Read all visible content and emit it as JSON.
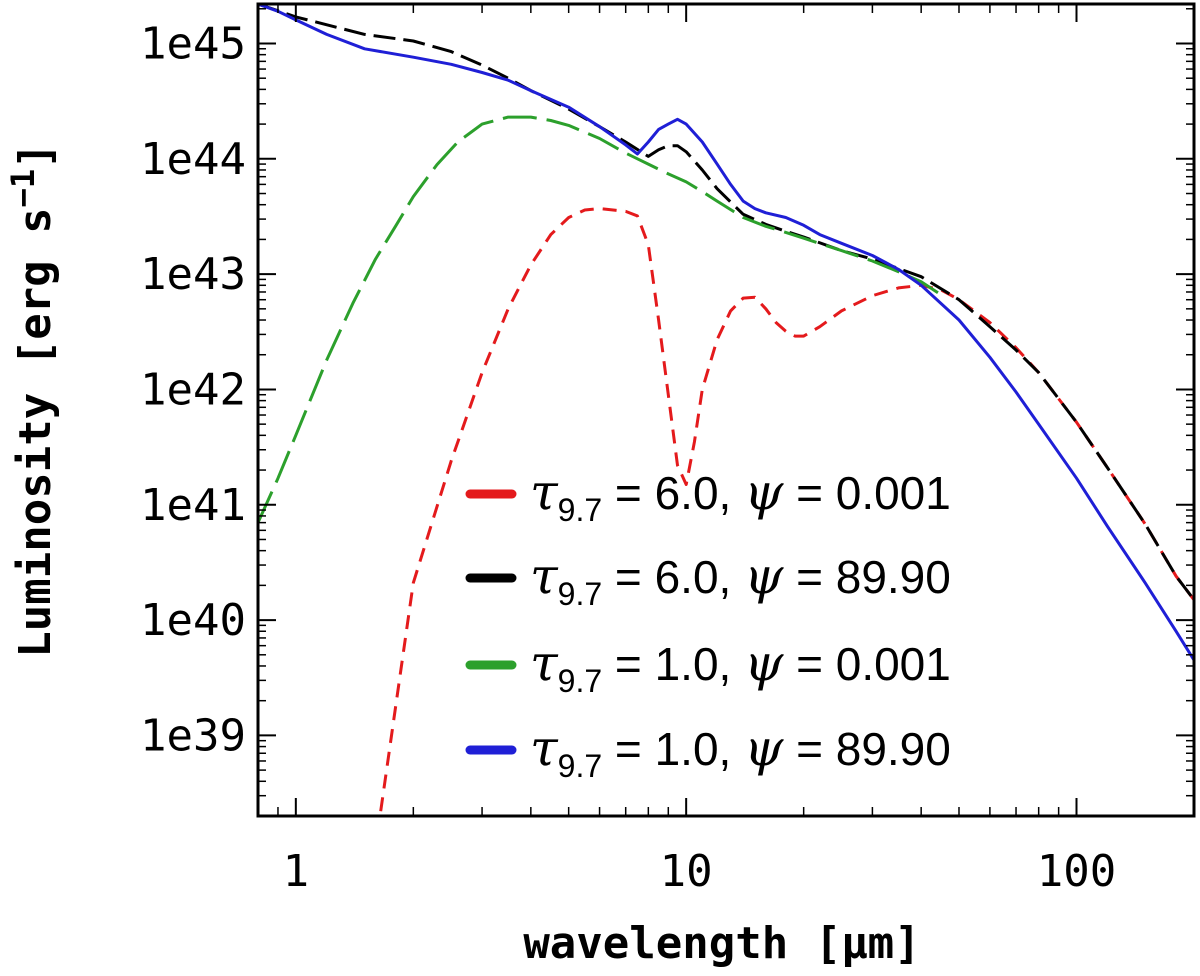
{
  "chart_data": {
    "type": "line",
    "xlabel": "wavelength [μm]",
    "ylabel": "Luminosity [erg s",
    "ylabel_sup": "−1",
    "ylabel_close": "]",
    "x_scale": "log",
    "y_scale": "log",
    "xlim": [
      0.8,
      200
    ],
    "ylim": [
      2e+38,
      2.2e+45
    ],
    "x_ticks": [
      {
        "value": 1,
        "label": "1"
      },
      {
        "value": 10,
        "label": "10"
      },
      {
        "value": 100,
        "label": "100"
      }
    ],
    "y_ticks": [
      {
        "value": 1e+39,
        "label": "1e39"
      },
      {
        "value": 1e+40,
        "label": "1e40"
      },
      {
        "value": 1e+41,
        "label": "1e41"
      },
      {
        "value": 1e+42,
        "label": "1e42"
      },
      {
        "value": 1e+43,
        "label": "1e43"
      },
      {
        "value": 1e+44,
        "label": "1e44"
      },
      {
        "value": 1e+45,
        "label": "1e45"
      }
    ],
    "grid": false,
    "legend_position": "bottom-right",
    "series": [
      {
        "name": "τ9.7 = 6.0, ψ = 0.001",
        "legend": {
          "tau": "τ",
          "sub": "9.7",
          "mid": " = 6.0, ",
          "psi": "ψ",
          "rest": " = 0.001"
        },
        "color": "#e41a1c",
        "dash": "14,9",
        "x": [
          1.65,
          2.0,
          2.5,
          3.0,
          3.5,
          4.0,
          4.5,
          5.0,
          5.5,
          6.0,
          6.5,
          7.0,
          7.5,
          8.0,
          8.5,
          9.0,
          9.5,
          10.0,
          10.5,
          11.0,
          12.0,
          13.0,
          14.0,
          15.0,
          16.0,
          17.0,
          18.0,
          19.0,
          20.0,
          22.0,
          25.0,
          30.0,
          35.0,
          40.0,
          45.0,
          50.0,
          60.0,
          70.0,
          80.0,
          100.0,
          120.0,
          150.0,
          180.0,
          200.0
        ],
        "y": [
          2.2e+38,
          2.1e+40,
          2.4e+41,
          1.4e+42,
          5e+42,
          1.2e+43,
          2.2e+43,
          3.1e+43,
          3.6e+43,
          3.7e+43,
          3.6e+43,
          3.5e+43,
          3.2e+43,
          1.8e+43,
          4e+42,
          9e+41,
          2.2e+41,
          1.5e+41,
          3.5e+41,
          1e+42,
          2.7e+42,
          4.8e+42,
          6.2e+42,
          6.3e+42,
          5e+42,
          3.8e+42,
          3.2e+42,
          2.9e+42,
          2.9e+42,
          3.5e+42,
          4.8e+42,
          6.5e+42,
          7.6e+42,
          8e+42,
          7.3e+42,
          6e+42,
          3.8e+42,
          2.3e+42,
          1.4e+42,
          5.2e+41,
          2.1e+41,
          6.8e+40,
          2.4e+40,
          1.5e+40
        ]
      },
      {
        "name": "τ9.7 = 6.0, ψ = 89.90",
        "legend": {
          "tau": "τ",
          "sub": "9.7",
          "mid": " = 6.0, ",
          "psi": "ψ",
          "rest": " = 89.90"
        },
        "color": "#000000",
        "dash": "22,8",
        "x": [
          0.8,
          1.0,
          1.5,
          2.0,
          2.5,
          3.0,
          3.5,
          4.0,
          5.0,
          6.0,
          7.0,
          8.0,
          8.5,
          9.0,
          9.5,
          10.0,
          11.0,
          12.0,
          14.0,
          16.0,
          18.0,
          20.0,
          25.0,
          30.0,
          40.0,
          50.0,
          60.0,
          70.0,
          80.0,
          100.0,
          120.0,
          150.0,
          180.0,
          200.0
        ],
        "y": [
          2.2e+45,
          1.7e+45,
          1.2e+45,
          1.05e+45,
          8.5e+44,
          6.5e+44,
          5e+44,
          3.9e+44,
          2.7e+44,
          1.9e+44,
          1.4e+44,
          1.05e+44,
          1.2e+44,
          1.3e+44,
          1.3e+44,
          1.15e+44,
          8e+43,
          5.5e+43,
          3.3e+43,
          2.7e+43,
          2.35e+43,
          2.1e+43,
          1.6e+43,
          1.35e+43,
          9.5e+42,
          6e+42,
          3.5e+42,
          2.2e+42,
          1.4e+42,
          5.2e+41,
          2.1e+41,
          6.8e+40,
          2.4e+40,
          1.5e+40
        ]
      },
      {
        "name": "τ9.7 = 1.0, ψ = 0.001",
        "legend": {
          "tau": "τ",
          "sub": "9.7",
          "mid": " = 1.0, ",
          "psi": "ψ",
          "rest": " = 0.001"
        },
        "color": "#2ca02c",
        "dash": "34,10",
        "x": [
          0.8,
          0.9,
          1.0,
          1.2,
          1.4,
          1.6,
          1.8,
          2.0,
          2.3,
          2.6,
          3.0,
          3.5,
          4.0,
          4.5,
          5.0,
          6.0,
          7.0,
          7.5,
          8.0,
          9.0,
          10.0,
          11.0,
          12.0,
          14.0,
          16.0,
          18.0,
          20.0,
          25.0,
          30.0,
          35.0,
          40.0,
          45.0
        ],
        "y": [
          7e+40,
          1.7e+41,
          4e+41,
          1.8e+42,
          5.6e+42,
          1.35e+43,
          2.6e+43,
          4.7e+43,
          8.9e+43,
          1.4e+44,
          2e+44,
          2.3e+44,
          2.3e+44,
          2.15e+44,
          1.95e+44,
          1.5e+44,
          1.12e+44,
          1e+44,
          9e+43,
          7.4e+43,
          6.3e+43,
          5.2e+43,
          4.3e+43,
          3.1e+43,
          2.6e+43,
          2.3e+43,
          2.05e+43,
          1.6e+43,
          1.3e+43,
          1.05e+43,
          8.6e+42,
          6.6e+42
        ]
      },
      {
        "name": "τ9.7 = 1.0, ψ = 89.90",
        "legend": {
          "tau": "τ",
          "sub": "9.7",
          "mid": " = 1.0, ",
          "psi": "ψ",
          "rest": " = 89.90"
        },
        "color": "#1f1fd6",
        "dash": "",
        "x": [
          0.8,
          0.9,
          1.0,
          1.2,
          1.5,
          2.0,
          2.5,
          3.0,
          3.5,
          4.0,
          5.0,
          6.0,
          7.0,
          7.5,
          8.0,
          8.5,
          9.0,
          9.5,
          10.0,
          11.0,
          12.0,
          13.0,
          14.0,
          15.0,
          16.0,
          18.0,
          20.0,
          22.0,
          25.0,
          30.0,
          35.0,
          40.0,
          50.0,
          60.0,
          70.0,
          80.0,
          100.0,
          120.0,
          150.0,
          180.0,
          200.0
        ],
        "y": [
          2.2e+45,
          1.9e+45,
          1.6e+45,
          1.2e+45,
          9e+44,
          7.6e+44,
          6.6e+44,
          5.6e+44,
          4.8e+44,
          3.9e+44,
          2.8e+44,
          1.9e+44,
          1.32e+44,
          1.1e+44,
          1.4e+44,
          1.8e+44,
          2e+44,
          2.2e+44,
          2e+44,
          1.4e+44,
          9e+43,
          6e+43,
          4.3e+43,
          3.7e+43,
          3.4e+43,
          3.1e+43,
          2.65e+43,
          2.2e+43,
          1.85e+43,
          1.45e+43,
          1.1e+43,
          8e+42,
          4e+42,
          1.9e+42,
          9.5e+41,
          5e+41,
          1.7e+41,
          6.5e+40,
          2.1e+40,
          8e+39,
          4.5e+39
        ]
      }
    ]
  }
}
